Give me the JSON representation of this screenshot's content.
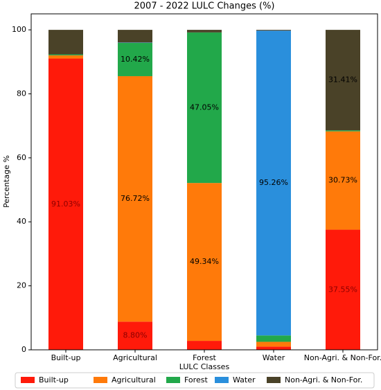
{
  "chart_data": {
    "type": "stacked_bar",
    "title": "2007 - 2022 LULC Changes (%)",
    "xlabel": "LULC Classes",
    "ylabel": "Percentage %",
    "categories": [
      "Built-up",
      "Agricultural",
      "Forest",
      "Water",
      "Non-Agri. & Non-For."
    ],
    "ylim": [
      0,
      105
    ],
    "yticks": [
      0,
      20,
      40,
      60,
      80,
      100
    ],
    "legend": "bottom",
    "series": [
      {
        "name": "Built-up",
        "color": "#ff1a0a",
        "values": [
          91.03,
          8.8,
          2.8,
          1.0,
          37.55
        ],
        "value_labels": [
          "91.03%",
          "8.80%",
          null,
          null,
          "37.55%"
        ]
      },
      {
        "name": "Agricultural",
        "color": "#ff7a0a",
        "values": [
          1.0,
          76.72,
          49.34,
          1.5,
          30.73
        ],
        "value_labels": [
          null,
          "76.72%",
          "49.34%",
          null,
          "30.73%"
        ]
      },
      {
        "name": "Forest",
        "color": "#22a84a",
        "values": [
          0.3,
          10.42,
          47.05,
          2.0,
          0.31
        ],
        "value_labels": [
          null,
          "10.42%",
          "47.05%",
          null,
          null
        ]
      },
      {
        "name": "Water",
        "color": "#2a8fdc",
        "values": [
          0,
          0.1,
          0,
          95.26,
          0
        ],
        "value_labels": [
          null,
          null,
          null,
          "95.26%",
          null
        ]
      },
      {
        "name": "Non-Agri. & Non-For.",
        "color": "#4a4228",
        "values": [
          7.67,
          3.96,
          0.81,
          0.24,
          31.41
        ],
        "value_labels": [
          null,
          null,
          null,
          null,
          "31.41%"
        ]
      }
    ]
  }
}
